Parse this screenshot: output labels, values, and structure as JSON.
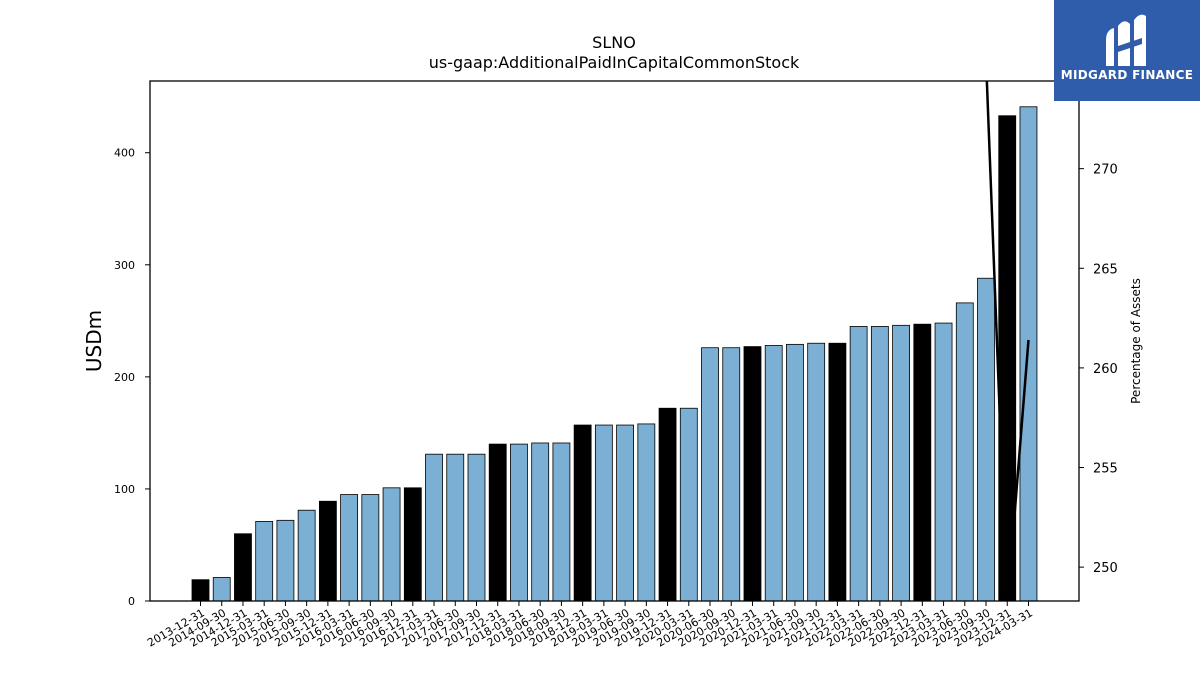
{
  "chart_data": {
    "type": "bar",
    "title": "SLNO",
    "subtitle": "us-gaap:AdditionalPaidInCapitalCommonStock",
    "ylabel": "USDm",
    "y2label": "Percentage of Assets",
    "ylim": [
      0,
      464
    ],
    "y2lim": [
      248.3,
      274.4
    ],
    "yticks": [
      0,
      100,
      200,
      300,
      400
    ],
    "y2ticks": [
      250,
      255,
      260,
      265,
      270
    ],
    "grid": false,
    "categories": [
      "2013-12-31",
      "2014-09-30",
      "2014-12-31",
      "2015-03-31",
      "2015-06-30",
      "2015-09-30",
      "2015-12-31",
      "2016-03-31",
      "2016-06-30",
      "2016-09-30",
      "2016-12-31",
      "2017-03-31",
      "2017-06-30",
      "2017-09-30",
      "2017-12-31",
      "2018-03-31",
      "2018-06-30",
      "2018-09-30",
      "2018-12-31",
      "2019-03-31",
      "2019-06-30",
      "2019-09-30",
      "2019-12-31",
      "2020-03-31",
      "2020-06-30",
      "2020-09-30",
      "2020-12-31",
      "2021-03-31",
      "2021-06-30",
      "2021-09-30",
      "2021-12-31",
      "2022-03-31",
      "2022-06-30",
      "2022-09-30",
      "2022-12-31",
      "2023-03-31",
      "2023-06-30",
      "2023-09-30",
      "2023-12-31",
      "2024-03-31"
    ],
    "values": [
      19,
      21,
      60,
      71,
      72,
      81,
      89,
      95,
      95,
      101,
      101,
      131,
      131,
      131,
      140,
      140,
      141,
      141,
      157,
      157,
      157,
      158,
      172,
      172,
      226,
      226,
      227,
      228,
      229,
      230,
      230,
      245,
      245,
      246,
      247,
      248,
      266,
      288,
      433,
      441
    ],
    "fiscal_year_end": [
      true,
      false,
      true,
      false,
      false,
      false,
      true,
      false,
      false,
      false,
      true,
      false,
      false,
      false,
      true,
      false,
      false,
      false,
      true,
      false,
      false,
      false,
      true,
      false,
      false,
      false,
      true,
      false,
      false,
      false,
      true,
      false,
      false,
      false,
      true,
      false,
      false,
      false,
      true,
      false
    ],
    "bar_colors": {
      "year_end": "#000000",
      "quarter": "#7bafd4",
      "edge": "#000000"
    },
    "pct_series": {
      "name": "",
      "color": "#000000",
      "x": [
        "2023-09-30",
        "2023-12-31",
        "2024-03-31"
      ],
      "values": [
        275.5,
        248.0,
        261.4
      ]
    }
  },
  "logo": {
    "text": "MIDGARD FINANCE",
    "color": "#2f5cab"
  }
}
